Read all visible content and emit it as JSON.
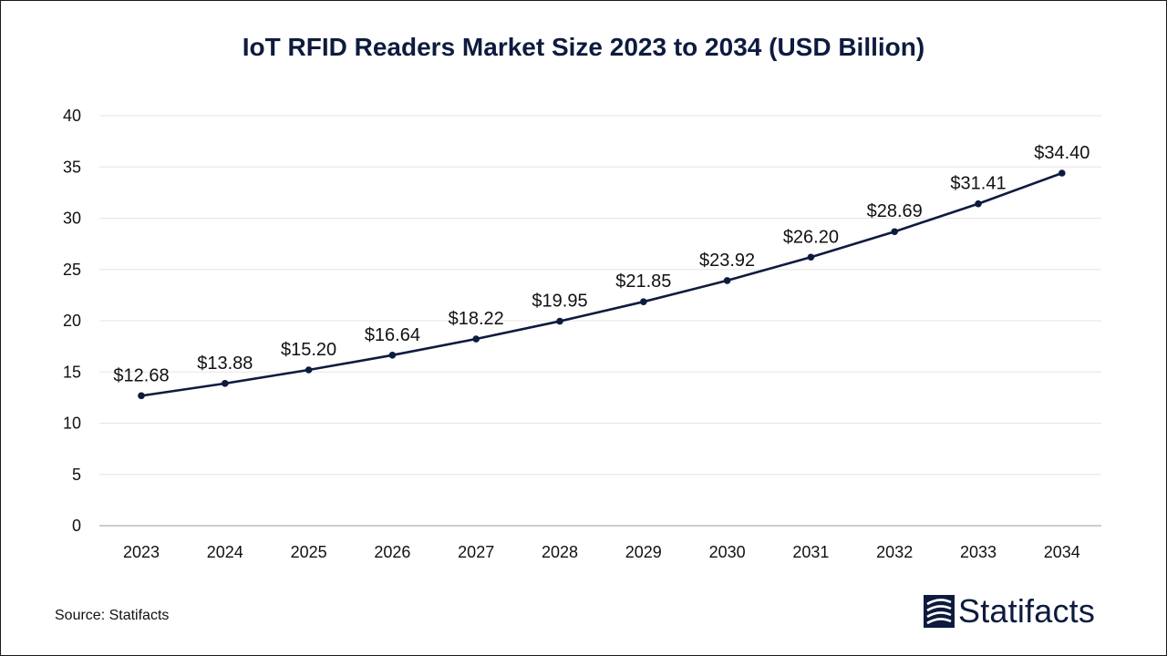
{
  "chart_data": {
    "type": "line",
    "title": "IoT RFID Readers Market Size 2023 to 2034 (USD Billion)",
    "categories": [
      "2023",
      "2024",
      "2025",
      "2026",
      "2027",
      "2028",
      "2029",
      "2030",
      "2031",
      "2032",
      "2033",
      "2034"
    ],
    "series": [
      {
        "values": [
          12.68,
          13.88,
          15.2,
          16.64,
          18.22,
          19.95,
          21.85,
          23.92,
          26.2,
          28.69,
          31.41,
          34.4
        ],
        "labels": [
          "$12.68",
          "$13.88",
          "$15.20",
          "$16.64",
          "$18.22",
          "$19.95",
          "$21.85",
          "$23.92",
          "$26.20",
          "$28.69",
          "$31.41",
          "$34.40"
        ]
      }
    ],
    "ylim": [
      0,
      40
    ],
    "yticks": [
      "0",
      "5",
      "10",
      "15",
      "20",
      "25",
      "30",
      "35",
      "40"
    ],
    "grid": true,
    "line_color": "#0d1b3e"
  },
  "source": "Source: Statifacts",
  "logo": {
    "name": "Statifacts",
    "icon": "statifacts-logo-icon"
  }
}
